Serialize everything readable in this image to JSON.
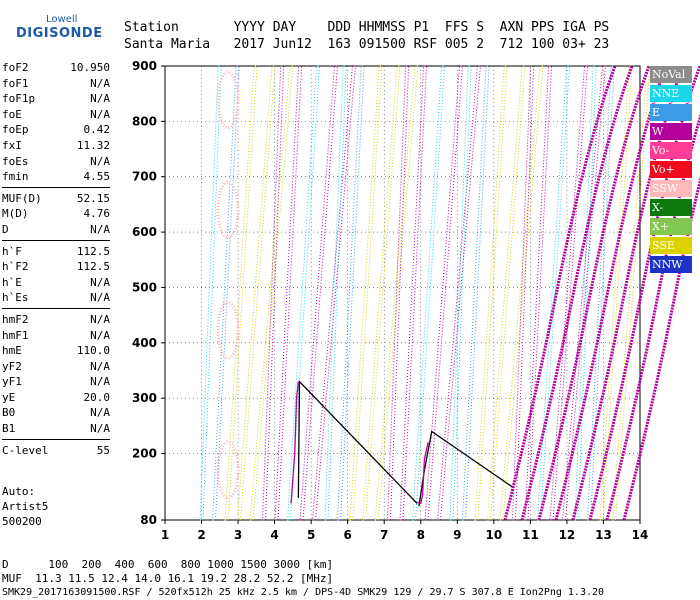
{
  "logo": {
    "line1": "Lowell",
    "line2": "DIGISONDE"
  },
  "header": {
    "keys": "Station       YYYY DAY    DDD HHMMSS P1  FFS S  AXN PPS IGA PS",
    "values": "Santa Maria   2017 Jun12  163 091500 RSF 005 2  712 100 03+ 23"
  },
  "params": [
    {
      "group": [
        {
          "label": "foF2",
          "value": "10.950"
        },
        {
          "label": "foF1",
          "value": "N/A"
        },
        {
          "label": "foF1p",
          "value": "N/A"
        },
        {
          "label": "foE",
          "value": "N/A"
        },
        {
          "label": "foEp",
          "value": "0.42"
        },
        {
          "label": "fxI",
          "value": "11.32"
        },
        {
          "label": "foEs",
          "value": "N/A"
        },
        {
          "label": "fmin",
          "value": "4.55"
        }
      ]
    },
    {
      "group": [
        {
          "label": "MUF(D)",
          "value": "52.15"
        },
        {
          "label": "M(D)",
          "value": "4.76"
        },
        {
          "label": "D",
          "value": "N/A"
        }
      ]
    },
    {
      "group": [
        {
          "label": "h`F",
          "value": "112.5"
        },
        {
          "label": "h`F2",
          "value": "112.5"
        },
        {
          "label": "h`E",
          "value": "N/A"
        },
        {
          "label": "h`Es",
          "value": "N/A"
        }
      ]
    },
    {
      "group": [
        {
          "label": "hmF2",
          "value": "N/A"
        },
        {
          "label": "hmF1",
          "value": "N/A"
        },
        {
          "label": "hmE",
          "value": "110.0"
        },
        {
          "label": "yF2",
          "value": "N/A"
        },
        {
          "label": "yF1",
          "value": "N/A"
        },
        {
          "label": "yE",
          "value": "20.0"
        },
        {
          "label": "B0",
          "value": "N/A"
        },
        {
          "label": "B1",
          "value": "N/A"
        }
      ]
    },
    {
      "group": [
        {
          "label": "C-level",
          "value": "55"
        }
      ]
    }
  ],
  "auto": {
    "line1": "Auto:",
    "line2": "Artist5",
    "line3": "500200"
  },
  "legend": [
    {
      "label": "NoVal",
      "color": "#8c8c8c"
    },
    {
      "label": "NNE",
      "color": "#19d7e6"
    },
    {
      "label": "E",
      "color": "#3d9be6"
    },
    {
      "label": "W",
      "color": "#b4009b"
    },
    {
      "label": "Vo-",
      "color": "#ff3c96"
    },
    {
      "label": "Vo+",
      "color": "#f00a1e"
    },
    {
      "label": "SSW",
      "color": "#ffb9b9"
    },
    {
      "label": "X-",
      "color": "#0a780a"
    },
    {
      "label": "X+",
      "color": "#82c850"
    },
    {
      "label": "SSE",
      "color": "#dcd200"
    },
    {
      "label": "NNW",
      "color": "#1e32c8"
    }
  ],
  "footer": {
    "d_line": "D      100  200  400  600  800 1000 1500 3000 [km]",
    "muf_line": "MUF  11.3 11.5 12.4 14.0 16.1 19.2 28.2 52.2 [MHz]",
    "info_line": "SMK29_2017163091500.RSF / 520fx512h 25 kHz 2.5 km / DPS-4D SMK29 129 / 29.7 S 307.8 E Ion2Png 1.3.20"
  },
  "chart_data": {
    "type": "scatter",
    "title": "",
    "xlabel": "",
    "ylabel": "",
    "xlim": [
      1,
      14
    ],
    "ylim": [
      80,
      900
    ],
    "x_ticks": [
      1,
      2,
      3,
      4,
      5,
      6,
      7,
      8,
      9,
      10,
      11,
      12,
      13,
      14
    ],
    "y_ticks": [
      80,
      200,
      300,
      400,
      500,
      600,
      700,
      800,
      900
    ],
    "grid": true,
    "trace_lines": [
      {
        "color": "#000000",
        "points": [
          [
            4.65,
            120
          ],
          [
            4.68,
            330
          ],
          [
            7.9,
            110
          ]
        ]
      },
      {
        "color": "#000000",
        "points": [
          [
            7.95,
            105
          ],
          [
            8.1,
            170
          ],
          [
            8.3,
            240
          ],
          [
            10.5,
            140
          ]
        ]
      },
      {
        "color": "#b4009b",
        "points": [
          [
            7.9,
            112
          ],
          [
            8.0,
            110
          ],
          [
            8.05,
            125
          ],
          [
            8.1,
            190
          ],
          [
            8.2,
            220
          ]
        ]
      },
      {
        "color": "#b4009b",
        "points": [
          [
            4.45,
            110
          ],
          [
            4.55,
            200
          ],
          [
            4.6,
            300
          ],
          [
            4.65,
            330
          ]
        ]
      }
    ]
  }
}
